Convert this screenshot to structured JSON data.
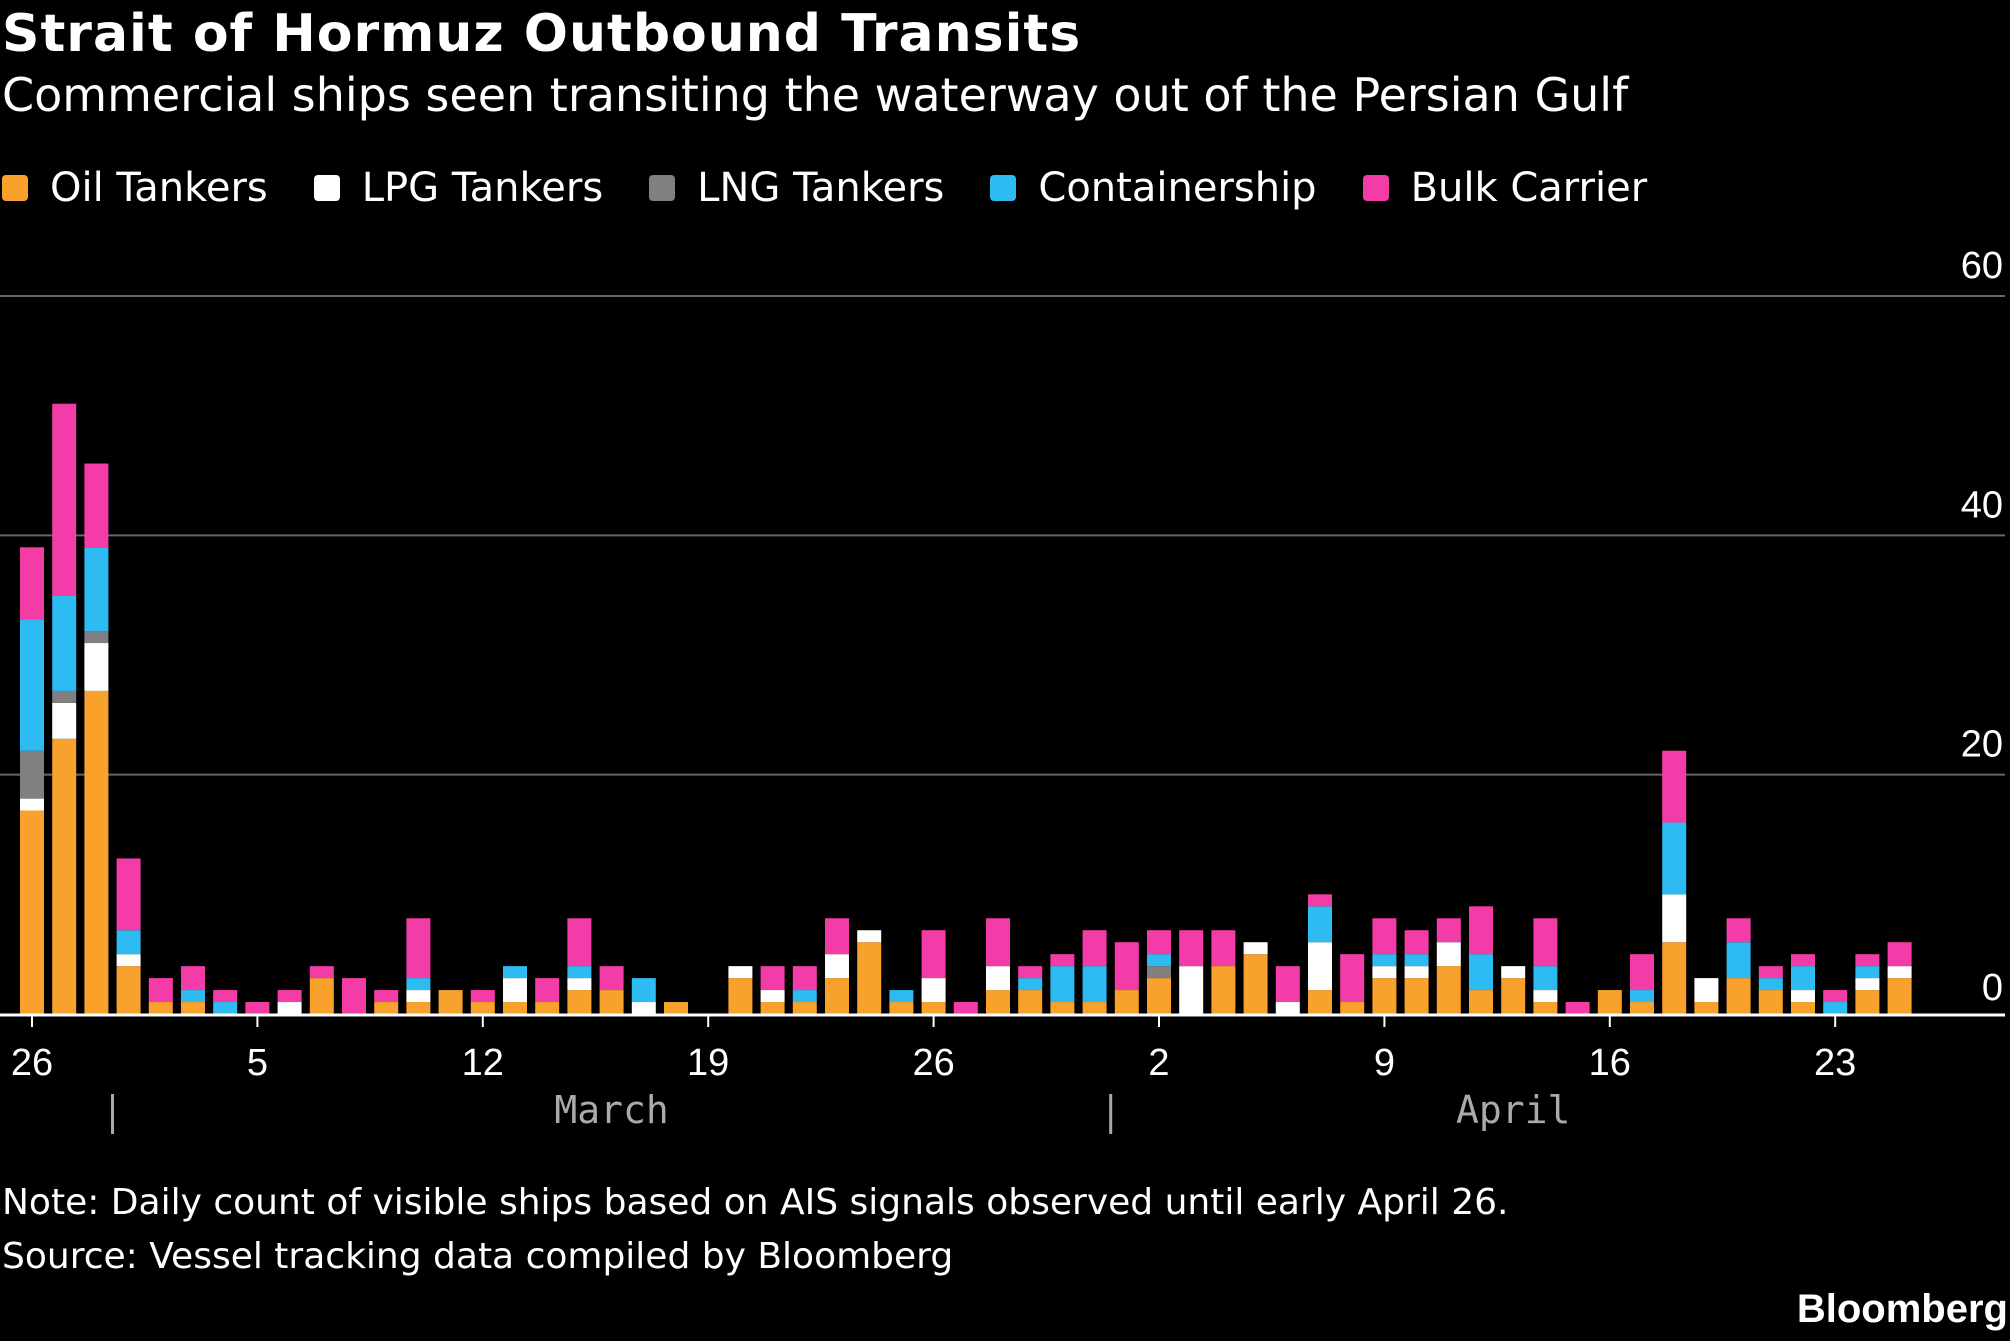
{
  "chart_data": {
    "type": "bar",
    "stacked": true,
    "title": "Strait of Hormuz Outbound Transits",
    "subtitle": "Commercial ships seen transiting the waterway out of the Persian Gulf",
    "ylim": [
      0,
      60
    ],
    "yticks": [
      0,
      20,
      40,
      60
    ],
    "ytick_labels": [
      "0",
      "20",
      "40",
      "60"
    ],
    "xticks": [
      {
        "index": 0,
        "label": "26"
      },
      {
        "index": 7,
        "label": "5"
      },
      {
        "index": 14,
        "label": "12"
      },
      {
        "index": 21,
        "label": "19"
      },
      {
        "index": 28,
        "label": "26"
      },
      {
        "index": 35,
        "label": "2"
      },
      {
        "index": 42,
        "label": "9"
      },
      {
        "index": 49,
        "label": "16"
      },
      {
        "index": 56,
        "label": "23"
      }
    ],
    "month_labels": [
      {
        "label": "March",
        "start": 3,
        "end": 34
      },
      {
        "label": "April",
        "start": 34,
        "end": 60
      }
    ],
    "month_separators": [
      3,
      34
    ],
    "categories": [
      "Feb 26",
      "Feb 27",
      "Feb 28",
      "Mar 1",
      "Mar 2",
      "Mar 3",
      "Mar 4",
      "Mar 5",
      "Mar 6",
      "Mar 7",
      "Mar 8",
      "Mar 9",
      "Mar 10",
      "Mar 11",
      "Mar 12",
      "Mar 13",
      "Mar 14",
      "Mar 15",
      "Mar 16",
      "Mar 17",
      "Mar 18",
      "Mar 19",
      "Mar 20",
      "Mar 21",
      "Mar 22",
      "Mar 23",
      "Mar 24",
      "Mar 25",
      "Mar 26",
      "Mar 27",
      "Mar 28",
      "Mar 29",
      "Mar 30",
      "Mar 31",
      "Apr 1",
      "Apr 2",
      "Apr 3",
      "Apr 4",
      "Apr 5",
      "Apr 6",
      "Apr 7",
      "Apr 8",
      "Apr 9",
      "Apr 10",
      "Apr 11",
      "Apr 12",
      "Apr 13",
      "Apr 14",
      "Apr 15",
      "Apr 16",
      "Apr 17",
      "Apr 18",
      "Apr 19",
      "Apr 20",
      "Apr 21",
      "Apr 22",
      "Apr 23",
      "Apr 24",
      "Apr 25"
    ],
    "series": [
      {
        "name": "Oil Tankers",
        "color": "#F8A12C",
        "values": [
          17,
          23,
          27,
          4,
          1,
          1,
          0,
          0,
          0,
          3,
          0,
          1,
          1,
          2,
          1,
          1,
          1,
          2,
          2,
          0,
          1,
          0,
          3,
          1,
          1,
          3,
          6,
          1,
          1,
          0,
          2,
          2,
          1,
          1,
          2,
          3,
          0,
          4,
          5,
          0,
          2,
          1,
          3,
          3,
          4,
          2,
          3,
          1,
          0,
          2,
          1,
          6,
          1,
          3,
          2,
          1,
          0,
          2,
          3
        ]
      },
      {
        "name": "LPG Tankers",
        "color": "#FFFFFF",
        "values": [
          1,
          3,
          4,
          1,
          0,
          0,
          0,
          0,
          1,
          0,
          0,
          0,
          1,
          0,
          0,
          2,
          0,
          1,
          0,
          1,
          0,
          0,
          1,
          1,
          0,
          2,
          1,
          0,
          2,
          0,
          2,
          0,
          0,
          0,
          0,
          0,
          4,
          0,
          1,
          1,
          4,
          0,
          1,
          1,
          2,
          0,
          1,
          1,
          0,
          0,
          0,
          4,
          2,
          0,
          0,
          1,
          0,
          1,
          1
        ]
      },
      {
        "name": "LNG Tankers",
        "color": "#808080",
        "values": [
          4,
          1,
          1,
          0,
          0,
          0,
          0,
          0,
          0,
          0,
          0,
          0,
          0,
          0,
          0,
          0,
          0,
          0,
          0,
          0,
          0,
          0,
          0,
          0,
          0,
          0,
          0,
          0,
          0,
          0,
          0,
          0,
          0,
          0,
          0,
          1,
          0,
          0,
          0,
          0,
          0,
          0,
          0,
          0,
          0,
          0,
          0,
          0,
          0,
          0,
          0,
          0,
          0,
          0,
          0,
          0,
          0,
          0,
          0
        ]
      },
      {
        "name": "Containership",
        "color": "#2EBBF2",
        "values": [
          11,
          8,
          7,
          2,
          0,
          1,
          1,
          0,
          0,
          0,
          0,
          0,
          1,
          0,
          0,
          1,
          0,
          1,
          0,
          2,
          0,
          0,
          0,
          0,
          1,
          0,
          0,
          1,
          0,
          0,
          0,
          1,
          3,
          3,
          0,
          1,
          0,
          0,
          0,
          0,
          3,
          0,
          1,
          1,
          0,
          3,
          0,
          2,
          0,
          0,
          1,
          6,
          0,
          3,
          1,
          2,
          1,
          1,
          0
        ]
      },
      {
        "name": "Bulk Carrier",
        "color": "#F43CA8",
        "values": [
          6,
          16,
          7,
          6,
          2,
          2,
          1,
          1,
          1,
          1,
          3,
          1,
          5,
          0,
          1,
          0,
          2,
          4,
          2,
          0,
          0,
          0,
          0,
          2,
          2,
          3,
          0,
          0,
          4,
          1,
          4,
          1,
          1,
          3,
          4,
          2,
          3,
          3,
          0,
          3,
          1,
          4,
          3,
          2,
          2,
          4,
          0,
          4,
          1,
          0,
          3,
          6,
          0,
          2,
          1,
          1,
          1,
          1,
          2
        ]
      }
    ],
    "legend_position": "top-left"
  },
  "footer": {
    "note": "Note: Daily count of visible ships based on AIS signals observed until early April 26.",
    "source": "Source: Vessel tracking data compiled by Bloomberg",
    "brand": "Bloomberg"
  },
  "colors": {
    "background": "#000000",
    "grid": "#666666",
    "axis": "#ffffff",
    "tick_text": "#ffffff",
    "month_text": "#aaaaaa"
  }
}
